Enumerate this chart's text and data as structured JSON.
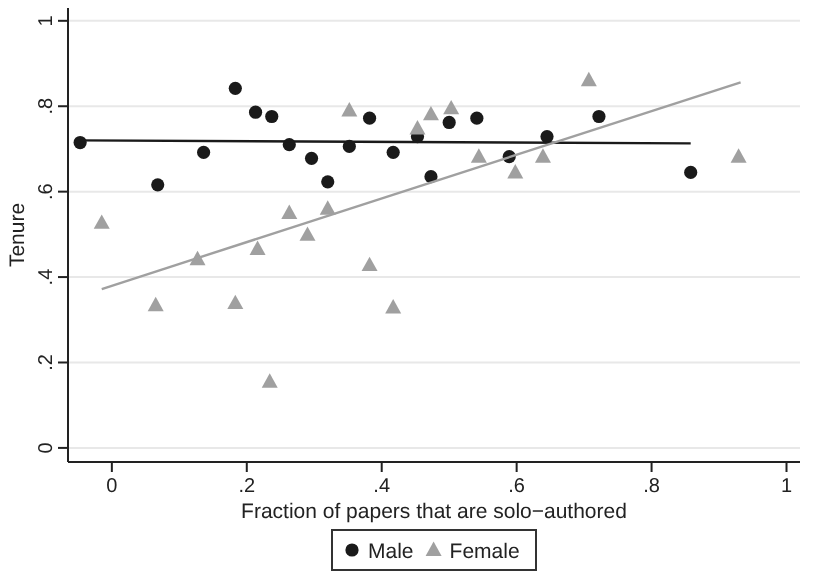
{
  "chart_data": {
    "type": "scatter",
    "xlabel": "Fraction of papers that are solo−authored",
    "ylabel": "Tenure",
    "xlim": [
      -0.065,
      1.02
    ],
    "ylim": [
      -0.033,
      1.03
    ],
    "xticks": [
      {
        "value": 0,
        "label": "0"
      },
      {
        "value": 0.2,
        "label": ".2"
      },
      {
        "value": 0.4,
        "label": ".4"
      },
      {
        "value": 0.6,
        "label": ".6"
      },
      {
        "value": 0.8,
        "label": ".8"
      },
      {
        "value": 1,
        "label": "1"
      }
    ],
    "yticks": [
      {
        "value": 0,
        "label": "0"
      },
      {
        "value": 0.2,
        "label": ".2"
      },
      {
        "value": 0.4,
        "label": ".4"
      },
      {
        "value": 0.6,
        "label": ".6"
      },
      {
        "value": 0.8,
        "label": ".8"
      },
      {
        "value": 1,
        "label": "1"
      }
    ],
    "grid": "y",
    "legend": "bottom",
    "series": [
      {
        "name": "Male",
        "color": "#1a1a1a",
        "marker": "circle",
        "x": [
          -0.047,
          0.068,
          0.136,
          0.183,
          0.213,
          0.237,
          0.263,
          0.296,
          0.32,
          0.352,
          0.382,
          0.417,
          0.453,
          0.473,
          0.5,
          0.541,
          0.589,
          0.645,
          0.722,
          0.858
        ],
        "values": [
          0.715,
          0.616,
          0.692,
          0.842,
          0.786,
          0.776,
          0.71,
          0.678,
          0.623,
          0.706,
          0.772,
          0.692,
          0.729,
          0.635,
          0.762,
          0.772,
          0.682,
          0.729,
          0.776,
          0.645
        ]
      },
      {
        "name": "Female",
        "color": "#a0a0a0",
        "marker": "triangle",
        "x": [
          -0.015,
          0.065,
          0.127,
          0.183,
          0.216,
          0.234,
          0.263,
          0.29,
          0.32,
          0.352,
          0.382,
          0.417,
          0.453,
          0.473,
          0.503,
          0.544,
          0.598,
          0.639,
          0.707,
          0.929
        ],
        "values": [
          0.527,
          0.334,
          0.442,
          0.339,
          0.466,
          0.155,
          0.55,
          0.499,
          0.56,
          0.79,
          0.428,
          0.329,
          0.748,
          0.781,
          0.795,
          0.682,
          0.645,
          0.682,
          0.861,
          0.682
        ]
      },
      {
        "type": "line",
        "color": "#1a1a1a",
        "x": [
          -0.047,
          0.858
        ],
        "values": [
          0.72,
          0.713
        ]
      },
      {
        "type": "line",
        "color": "#a0a0a0",
        "x": [
          -0.015,
          0.932
        ],
        "values": [
          0.372,
          0.856
        ]
      }
    ]
  }
}
